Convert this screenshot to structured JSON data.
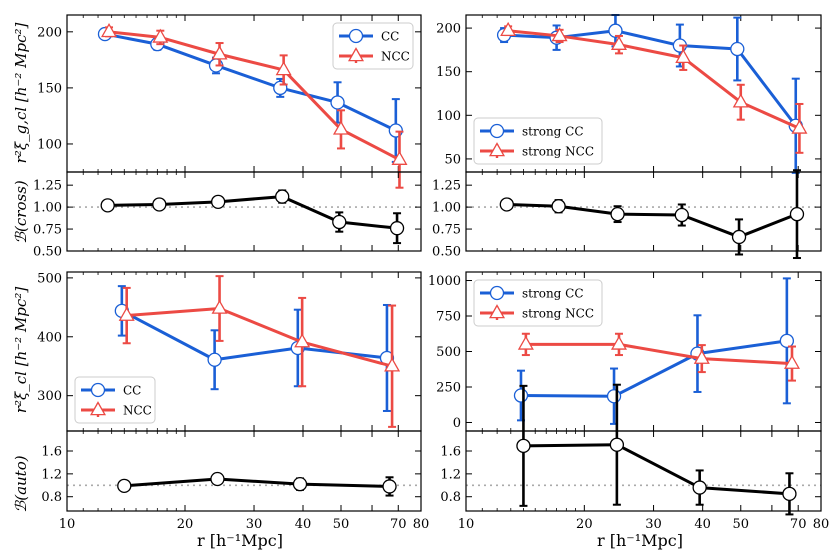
{
  "colors": {
    "cc": "#1a5fd6",
    "ncc": "#ec4a44",
    "ratio": "#000000",
    "reference": "#aaaaaa"
  },
  "xlabel": "r [h⁻¹Mpc]",
  "chart_data": [
    {
      "name": "cross-top-left",
      "type": "line",
      "xscale": "log",
      "xlim": [
        10,
        80
      ],
      "ylim": [
        75,
        215
      ],
      "yticks": [
        100,
        150,
        200
      ],
      "ylabel": "r²ξ_g,cl [h⁻² Mpc²]",
      "legend": "top-right",
      "series": [
        {
          "name": "CC",
          "color": "#1a5fd6",
          "marker": "circle",
          "x": [
            12.5,
            17,
            24,
            35,
            49,
            69
          ],
          "y": [
            198,
            189,
            170,
            150,
            137,
            112
          ],
          "err": [
            4,
            5,
            7,
            8,
            18,
            28
          ]
        },
        {
          "name": "NCC",
          "color": "#ec4a44",
          "marker": "triangle",
          "x": [
            12.8,
            17.3,
            24.5,
            35.7,
            50,
            70.5
          ],
          "y": [
            200,
            195,
            180,
            166,
            113,
            86
          ],
          "err": [
            4,
            6,
            10,
            13,
            17,
            25
          ]
        }
      ]
    },
    {
      "name": "cross-ratio-left",
      "type": "line",
      "xscale": "log",
      "xlim": [
        10,
        80
      ],
      "ylim": [
        0.5,
        1.4
      ],
      "yticks": [
        0.5,
        0.75,
        1.0,
        1.25
      ],
      "ytick_labels": [
        "0.50",
        "0.75",
        "1.00",
        "1.25"
      ],
      "ref": 1.0,
      "ylabel": "ℬ(cross)",
      "series": [
        {
          "name": "ratio",
          "color": "#000000",
          "marker": "circle",
          "x": [
            12.7,
            17.2,
            24.3,
            35.4,
            49.5,
            69.5
          ],
          "y": [
            1.02,
            1.03,
            1.06,
            1.12,
            0.83,
            0.76
          ],
          "err": [
            0.02,
            0.03,
            0.04,
            0.07,
            0.11,
            0.17
          ]
        }
      ]
    },
    {
      "name": "cross-top-right",
      "type": "line",
      "xscale": "log",
      "xlim": [
        10,
        80
      ],
      "ylim": [
        35,
        215
      ],
      "yticks": [
        50,
        100,
        150,
        200
      ],
      "legend": "bottom-left",
      "series": [
        {
          "name": "strong CC",
          "color": "#1a5fd6",
          "marker": "circle",
          "x": [
            12.5,
            17,
            24,
            35,
            49,
            69
          ],
          "y": [
            192,
            189,
            197,
            180,
            176,
            88
          ],
          "err": [
            8,
            14,
            18,
            24,
            36,
            54
          ]
        },
        {
          "name": "strong NCC",
          "color": "#ec4a44",
          "marker": "triangle",
          "x": [
            12.8,
            17.3,
            24.5,
            35.7,
            50,
            70.5
          ],
          "y": [
            197,
            191,
            181,
            166,
            115,
            85
          ],
          "err": [
            5,
            7,
            10,
            14,
            20,
            28
          ]
        }
      ]
    },
    {
      "name": "cross-ratio-right",
      "type": "line",
      "xscale": "log",
      "xlim": [
        10,
        80
      ],
      "ylim": [
        0.5,
        1.4
      ],
      "yticks": [
        0.5,
        0.75,
        1.0,
        1.25
      ],
      "ytick_labels": [
        "0.50",
        "0.75",
        "1.00",
        "1.25"
      ],
      "ref": 1.0,
      "series": [
        {
          "name": "ratio",
          "color": "#000000",
          "marker": "circle",
          "x": [
            12.7,
            17.2,
            24.3,
            35.4,
            49.5,
            69.5
          ],
          "y": [
            1.03,
            1.01,
            0.92,
            0.91,
            0.66,
            0.92
          ],
          "err": [
            0.04,
            0.07,
            0.09,
            0.12,
            0.2,
            0.5
          ]
        }
      ]
    },
    {
      "name": "auto-top-left",
      "type": "line",
      "xscale": "log",
      "xlim": [
        10,
        80
      ],
      "ylim": [
        240,
        510
      ],
      "yticks": [
        300,
        400,
        500
      ],
      "ylabel": "r²ξ_cl [h⁻² Mpc²]",
      "legend": "bottom-left",
      "series": [
        {
          "name": "CC",
          "color": "#1a5fd6",
          "marker": "circle",
          "x": [
            13.8,
            23.8,
            38.8,
            65.5
          ],
          "y": [
            444,
            361,
            381,
            364
          ],
          "err": [
            42,
            50,
            65,
            90
          ]
        },
        {
          "name": "NCC",
          "color": "#ec4a44",
          "marker": "triangle",
          "x": [
            14.2,
            24.5,
            39.8,
            67.5
          ],
          "y": [
            436,
            448,
            391,
            350
          ],
          "err": [
            47,
            55,
            75,
            103
          ]
        }
      ]
    },
    {
      "name": "auto-ratio-left",
      "type": "line",
      "xscale": "log",
      "xlim": [
        10,
        80
      ],
      "ylim": [
        0.55,
        1.95
      ],
      "yticks": [
        0.8,
        1.2,
        1.6
      ],
      "ytick_labels": [
        "0.8",
        "1.2",
        "1.6"
      ],
      "ref": 1.0,
      "ylabel": "ℬ(auto)",
      "series": [
        {
          "name": "ratio",
          "color": "#000000",
          "marker": "circle",
          "x": [
            14,
            24.2,
            39.3,
            66.5
          ],
          "y": [
            0.99,
            1.11,
            1.02,
            0.98
          ],
          "err": [
            0.03,
            0.07,
            0.1,
            0.16
          ]
        }
      ]
    },
    {
      "name": "auto-top-right",
      "type": "line",
      "xscale": "log",
      "xlim": [
        10,
        80
      ],
      "ylim": [
        -60,
        1060
      ],
      "yticks": [
        0,
        250,
        500,
        750,
        1000
      ],
      "legend": "top-left",
      "series": [
        {
          "name": "strong CC",
          "color": "#1a5fd6",
          "marker": "circle",
          "x": [
            13.8,
            23.8,
            38.8,
            65.5
          ],
          "y": [
            190,
            185,
            485,
            575
          ],
          "err": [
            175,
            195,
            270,
            440
          ]
        },
        {
          "name": "strong NCC",
          "color": "#ec4a44",
          "marker": "triangle",
          "x": [
            14.2,
            24.5,
            39.8,
            67.5
          ],
          "y": [
            550,
            550,
            450,
            415
          ],
          "err": [
            75,
            75,
            95,
            120
          ]
        }
      ]
    },
    {
      "name": "auto-ratio-right",
      "type": "line",
      "xscale": "log",
      "xlim": [
        10,
        80
      ],
      "ylim": [
        0.55,
        1.95
      ],
      "yticks": [
        0.8,
        1.2,
        1.6
      ],
      "ytick_labels": [
        "0.8",
        "1.2",
        "1.6"
      ],
      "ref": 1.0,
      "series": [
        {
          "name": "ratio",
          "color": "#000000",
          "marker": "circle",
          "x": [
            14,
            24.2,
            39.3,
            66.5
          ],
          "y": [
            1.69,
            1.71,
            0.96,
            0.85
          ],
          "err": [
            1.05,
            1.05,
            0.3,
            0.36
          ]
        }
      ]
    }
  ]
}
